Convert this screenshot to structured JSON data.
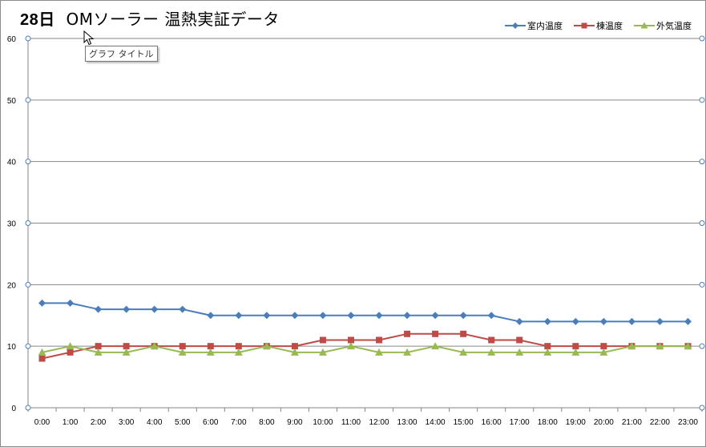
{
  "title": {
    "day": "28日",
    "text": "OMソーラー 温熱実証データ"
  },
  "tooltip": {
    "text": "グラフ タイトル"
  },
  "chart_data": {
    "type": "line",
    "categories": [
      "0:00",
      "1:00",
      "2:00",
      "3:00",
      "4:00",
      "5:00",
      "6:00",
      "7:00",
      "8:00",
      "9:00",
      "10:00",
      "11:00",
      "12:00",
      "13:00",
      "14:00",
      "15:00",
      "16:00",
      "17:00",
      "18:00",
      "19:00",
      "20:00",
      "21:00",
      "22:00",
      "23:00"
    ],
    "ylim": [
      0,
      60
    ],
    "yticks": [
      0,
      10,
      20,
      30,
      40,
      50,
      60
    ],
    "grid": true,
    "legend": "top-right",
    "series": [
      {
        "name": "室内温度",
        "color": "#4a7ebb",
        "marker": "diamond",
        "values": [
          17,
          17,
          16,
          16,
          16,
          16,
          15,
          15,
          15,
          15,
          15,
          15,
          15,
          15,
          15,
          15,
          15,
          14,
          14,
          14,
          14,
          14,
          14,
          14
        ]
      },
      {
        "name": "棟温度",
        "color": "#be4b48",
        "marker": "square",
        "values": [
          8,
          9,
          10,
          10,
          10,
          10,
          10,
          10,
          10,
          10,
          11,
          11,
          11,
          12,
          12,
          12,
          11,
          11,
          10,
          10,
          10,
          10,
          10,
          10
        ]
      },
      {
        "name": "外気温度",
        "color": "#98b954",
        "marker": "triangle",
        "values": [
          9,
          10,
          9,
          9,
          10,
          9,
          9,
          9,
          10,
          9,
          9,
          10,
          9,
          9,
          10,
          9,
          9,
          9,
          9,
          9,
          9,
          10,
          10,
          10
        ]
      }
    ]
  }
}
